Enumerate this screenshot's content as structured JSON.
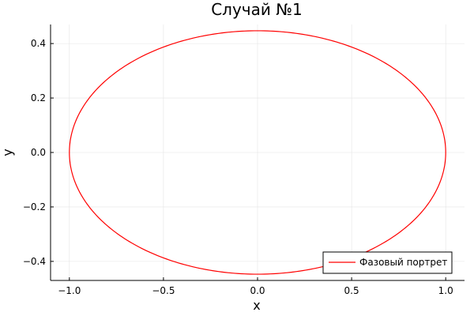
{
  "chart_data": {
    "type": "line",
    "title": "Случай №1",
    "xlabel": "x",
    "ylabel": "y",
    "xlim": [
      -1.1,
      1.1
    ],
    "ylim": [
      -0.47,
      0.47
    ],
    "xticks": [
      -1.0,
      -0.5,
      0.0,
      0.5,
      1.0
    ],
    "xtick_labels": [
      "−1.0",
      "−0.5",
      "0.0",
      "0.5",
      "1.0"
    ],
    "yticks": [
      -0.4,
      -0.2,
      0.0,
      0.2,
      0.4
    ],
    "ytick_labels": [
      "−0.4",
      "−0.2",
      "0.0",
      "0.2",
      "0.4"
    ],
    "grid": true,
    "legend_position": "bottom-right",
    "series": [
      {
        "name": "Фазовый портрет",
        "color": "#ff0000",
        "curve": "ellipse",
        "center": [
          0.0,
          0.0
        ],
        "x_semi_axis": 1.0,
        "y_semi_axis": 0.447
      }
    ]
  }
}
